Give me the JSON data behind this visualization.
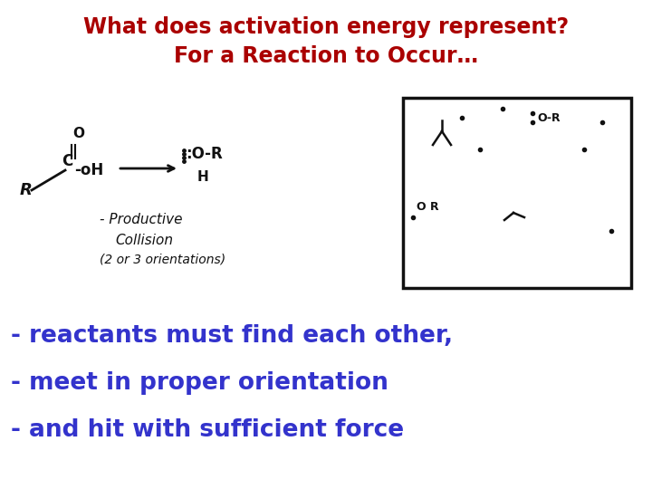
{
  "title_line1": "What does activation energy represent?",
  "title_line2": "For a Reaction to Occur…",
  "title_color": "#aa0000",
  "title_fontsize": 17,
  "bullet_color": "#3333cc",
  "bullet_fontsize": 19,
  "bullets": [
    "- reactants must find each other,",
    "- meet in proper orientation",
    "- and hit with sufficient force"
  ],
  "bg_color": "#ffffff",
  "hw_color": "#111111",
  "box_color": "#111111",
  "figsize": [
    7.2,
    5.4
  ],
  "dpi": 100
}
